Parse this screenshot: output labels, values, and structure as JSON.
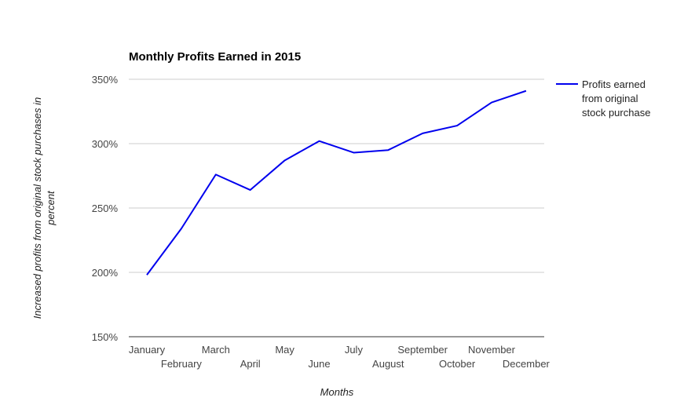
{
  "chart_data": {
    "type": "line",
    "title": "Monthly Profits Earned in 2015",
    "xlabel": "Months",
    "ylabel_lines": [
      "Increased profits from original stock purchases in",
      "percent"
    ],
    "categories": [
      "January",
      "February",
      "March",
      "April",
      "May",
      "June",
      "July",
      "August",
      "September",
      "October",
      "November",
      "December"
    ],
    "series": [
      {
        "name": "Profits earned from original stock purchase",
        "legend_lines": [
          "Profits earned",
          "from original",
          "stock purchase"
        ],
        "color": "#0000ee",
        "values": [
          198,
          234,
          276,
          264,
          287,
          302,
          293,
          295,
          308,
          314,
          332,
          341
        ]
      }
    ],
    "ylim": [
      150,
      350
    ],
    "yticks": [
      150,
      200,
      250,
      300,
      350
    ],
    "ytick_labels": [
      "150%",
      "200%",
      "250%",
      "300%",
      "350%"
    ],
    "grid": true,
    "legend_position": "right"
  }
}
